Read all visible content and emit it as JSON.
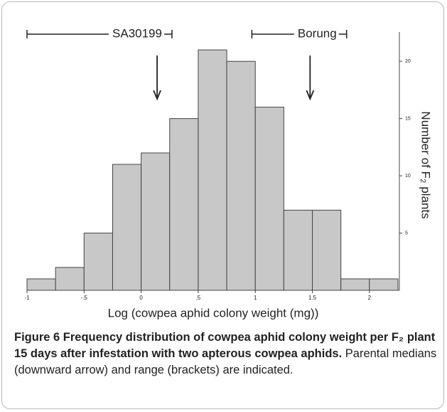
{
  "chart_data": {
    "type": "histogram",
    "bins": [
      -1,
      -0.75,
      -0.5,
      -0.25,
      0,
      0.25,
      0.5,
      0.75,
      1,
      1.25,
      1.5,
      1.75,
      2,
      2.25
    ],
    "values": [
      1,
      2,
      5,
      11,
      12,
      15,
      21,
      20,
      16,
      7,
      7,
      1,
      1
    ],
    "color": "#c8c8c8",
    "xlim": [
      -1,
      2.25
    ],
    "xticks": [
      -1,
      {
        "value": -0.5,
        "label": "-.5"
      },
      0,
      {
        "value": 0.5,
        "label": ".5"
      },
      1,
      1.5,
      2
    ],
    "ylim": [
      0,
      22
    ],
    "yticks": [
      5,
      10,
      15,
      20
    ],
    "xlabel": "Log (cowpea aphid colony weight (mg))",
    "ylabel": "Number of F₂ plants",
    "annotations": [
      {
        "text": "SA30199",
        "range": [
          -1,
          0.27
        ],
        "median": 0.14
      },
      {
        "text": "Borung",
        "range": [
          0.97,
          1.8
        ],
        "median": 1.48
      }
    ]
  },
  "caption": {
    "label": "Figure 6",
    "title": "Frequency distribution of cowpea aphid colony weight per F₂ plant 15 days after infestation with two apterous cowpea aphids.",
    "text": "Parental medians (downward arrow) and range (brackets) are indicated."
  }
}
